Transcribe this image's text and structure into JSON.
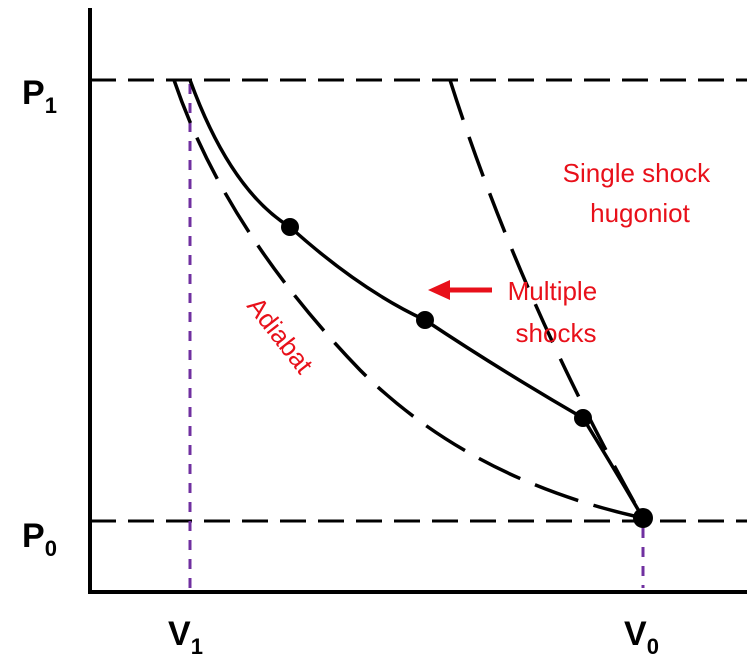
{
  "labels": {
    "p1": {
      "main": "P",
      "sub": "1"
    },
    "p0": {
      "main": "P",
      "sub": "0"
    },
    "v1": {
      "main": "V",
      "sub": "1"
    },
    "v0": {
      "main": "V",
      "sub": "0"
    }
  },
  "annotations": {
    "single_shock": [
      "Single shock",
      "hugoniot"
    ],
    "multiple_shocks": [
      "Multiple",
      "shocks"
    ],
    "adiabat": "Adiabat"
  },
  "colors": {
    "curves": "#000000",
    "annotation": "#e8101a",
    "volume_markers": "#7030a0"
  }
}
